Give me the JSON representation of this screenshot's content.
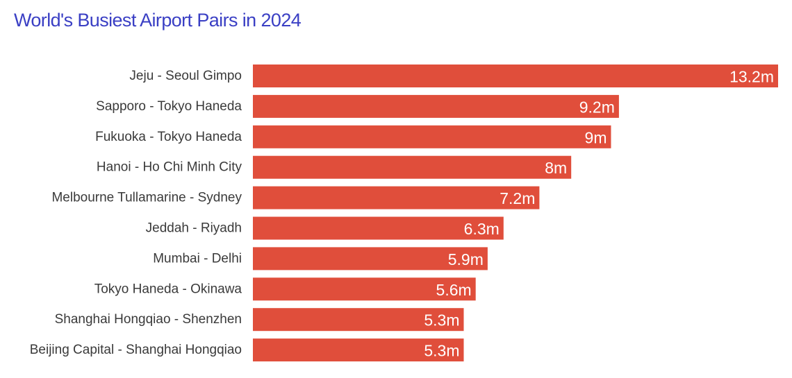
{
  "chart_data": {
    "type": "bar",
    "orientation": "horizontal",
    "title": "World's Busiest Airport Pairs in 2024",
    "categories": [
      "Jeju - Seoul Gimpo",
      "Sapporo - Tokyo Haneda",
      "Fukuoka - Tokyo Haneda",
      "Hanoi - Ho Chi Minh City",
      "Melbourne Tullamarine - Sydney",
      "Jeddah - Riyadh",
      "Mumbai - Delhi",
      "Tokyo Haneda - Okinawa",
      "Shanghai Hongqiao - Shenzhen",
      "Beijing Capital - Shanghai Hongqiao"
    ],
    "values": [
      13.2,
      9.2,
      9,
      8,
      7.2,
      6.3,
      5.9,
      5.6,
      5.3,
      5.3
    ],
    "value_labels": [
      "13.2m",
      "9.2m",
      "9m",
      "8m",
      "7.2m",
      "6.3m",
      "5.9m",
      "5.6m",
      "5.3m",
      "5.3m"
    ],
    "xlim": [
      0,
      13.2
    ],
    "grid": false,
    "colors": {
      "bar": "#e04e3b",
      "title": "#3a3fc4",
      "label": "#3a3a3a",
      "value_label": "#ffffff"
    }
  }
}
